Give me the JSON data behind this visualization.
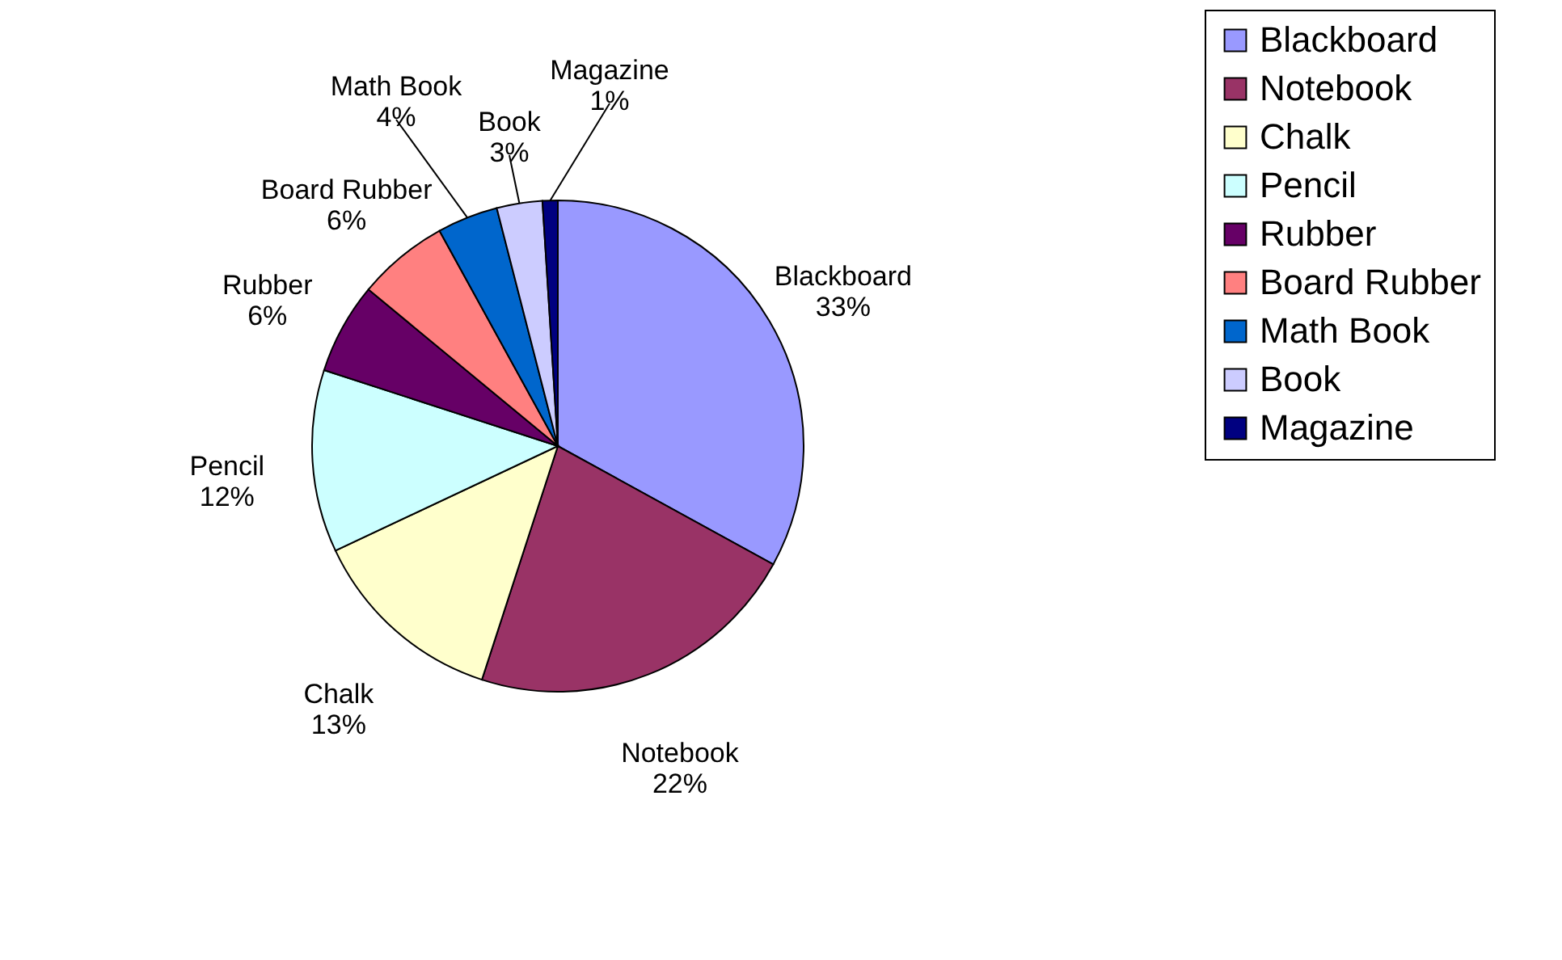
{
  "chart_data": {
    "type": "pie",
    "categories": [
      "Blackboard",
      "Notebook",
      "Chalk",
      "Pencil",
      "Rubber",
      "Board Rubber",
      "Math Book",
      "Book",
      "Magazine"
    ],
    "values": [
      33,
      22,
      13,
      12,
      6,
      6,
      4,
      3,
      1
    ],
    "value_labels": [
      "33%",
      "22%",
      "13%",
      "12%",
      "6%",
      "6%",
      "4%",
      "3%",
      "1%"
    ],
    "colors": [
      "#9999ff",
      "#993366",
      "#ffffcc",
      "#ccffff",
      "#660066",
      "#ff8080",
      "#0066cc",
      "#ccccff",
      "#000080"
    ],
    "legend": "right"
  }
}
